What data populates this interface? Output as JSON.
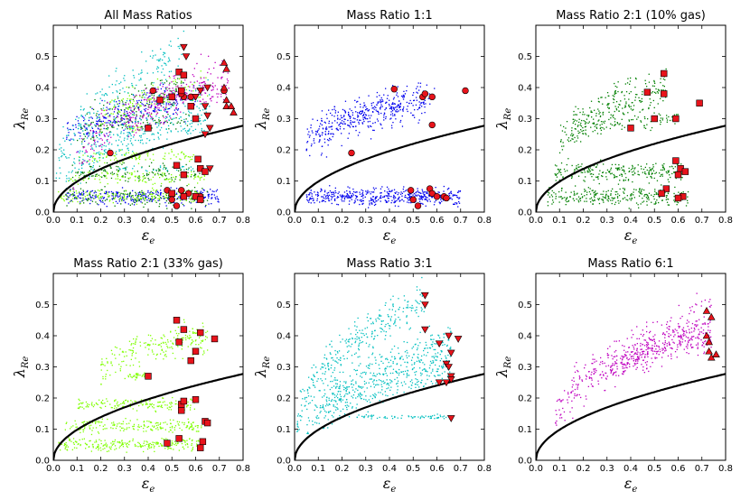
{
  "chart_data": [
    {
      "type": "scatter",
      "title": "All Mass Ratios",
      "xlabel": "ε",
      "xlabel_sub": "e",
      "ylabel": "λ",
      "ylabel_sub": "Re",
      "xlim": [
        0,
        0.8
      ],
      "ylim": [
        0,
        0.6
      ],
      "xticks": [
        "0.0",
        "0.1",
        "0.2",
        "0.3",
        "0.4",
        "0.5",
        "0.6",
        "0.7",
        "0.8"
      ],
      "yticks": [
        "0.0",
        "0.1",
        "0.2",
        "0.3",
        "0.4",
        "0.5"
      ],
      "grid": false,
      "curve": {
        "formula": "0.31*sqrt(x)",
        "color": "#000000"
      },
      "clouds_from": [
        "1:1",
        "2:1 (10% gas)",
        "2:1 (33% gas)",
        "3:1",
        "6:1"
      ],
      "markers": [
        {
          "shape": "circle",
          "color": "#e8131b",
          "points": [
            [
              0.42,
              0.39
            ],
            [
              0.55,
              0.37
            ],
            [
              0.54,
              0.38
            ],
            [
              0.58,
              0.37
            ],
            [
              0.72,
              0.39
            ],
            [
              0.24,
              0.19
            ],
            [
              0.5,
              0.04
            ],
            [
              0.52,
              0.02
            ],
            [
              0.54,
              0.07
            ],
            [
              0.57,
              0.06
            ],
            [
              0.6,
              0.05
            ],
            [
              0.62,
              0.05
            ],
            [
              0.48,
              0.07
            ]
          ]
        },
        {
          "shape": "square",
          "color": "#e8131b",
          "points": [
            [
              0.53,
              0.45
            ],
            [
              0.55,
              0.44
            ],
            [
              0.5,
              0.37
            ],
            [
              0.45,
              0.36
            ],
            [
              0.54,
              0.39
            ],
            [
              0.58,
              0.34
            ],
            [
              0.4,
              0.27
            ],
            [
              0.6,
              0.3
            ],
            [
              0.62,
              0.14
            ],
            [
              0.61,
              0.17
            ],
            [
              0.64,
              0.13
            ],
            [
              0.55,
              0.12
            ],
            [
              0.5,
              0.06
            ],
            [
              0.55,
              0.05
            ],
            [
              0.6,
              0.05
            ],
            [
              0.62,
              0.04
            ],
            [
              0.52,
              0.15
            ]
          ]
        },
        {
          "shape": "triangle-down",
          "color": "#e8131b",
          "points": [
            [
              0.55,
              0.53
            ],
            [
              0.56,
              0.5
            ],
            [
              0.65,
              0.4
            ],
            [
              0.64,
              0.34
            ],
            [
              0.65,
              0.31
            ],
            [
              0.66,
              0.27
            ],
            [
              0.64,
              0.25
            ],
            [
              0.66,
              0.14
            ],
            [
              0.6,
              0.37
            ],
            [
              0.62,
              0.39
            ]
          ]
        },
        {
          "shape": "triangle-up",
          "color": "#e8131b",
          "points": [
            [
              0.72,
              0.48
            ],
            [
              0.73,
              0.46
            ],
            [
              0.72,
              0.4
            ],
            [
              0.73,
              0.36
            ],
            [
              0.73,
              0.34
            ],
            [
              0.75,
              0.34
            ],
            [
              0.76,
              0.32
            ]
          ]
        }
      ]
    },
    {
      "type": "scatter",
      "title": "Mass Ratio 1:1",
      "xlabel": "ε",
      "xlabel_sub": "e",
      "ylabel": "λ",
      "ylabel_sub": "Re",
      "xlim": [
        0,
        0.8
      ],
      "ylim": [
        0,
        0.6
      ],
      "xticks": [
        "0.0",
        "0.1",
        "0.2",
        "0.3",
        "0.4",
        "0.5",
        "0.6",
        "0.7",
        "0.8"
      ],
      "yticks": [
        "0.0",
        "0.1",
        "0.2",
        "0.3",
        "0.4",
        "0.5"
      ],
      "grid": false,
      "curve": {
        "formula": "0.31*sqrt(x)",
        "color": "#000000"
      },
      "cloud_color": "#0000ee",
      "markers": [
        {
          "shape": "circle",
          "color": "#e8131b",
          "points": [
            [
              0.42,
              0.395
            ],
            [
              0.54,
              0.37
            ],
            [
              0.55,
              0.38
            ],
            [
              0.58,
              0.37
            ],
            [
              0.72,
              0.39
            ],
            [
              0.58,
              0.28
            ],
            [
              0.24,
              0.19
            ],
            [
              0.49,
              0.07
            ],
            [
              0.5,
              0.04
            ],
            [
              0.52,
              0.02
            ],
            [
              0.57,
              0.075
            ],
            [
              0.58,
              0.06
            ],
            [
              0.6,
              0.05
            ],
            [
              0.63,
              0.05
            ],
            [
              0.64,
              0.045
            ]
          ]
        }
      ]
    },
    {
      "type": "scatter",
      "title": "Mass Ratio 2:1 (10% gas)",
      "xlabel": "ε",
      "xlabel_sub": "e",
      "ylabel": "λ",
      "ylabel_sub": "Re",
      "xlim": [
        0,
        0.8
      ],
      "ylim": [
        0,
        0.6
      ],
      "xticks": [
        "0.0",
        "0.1",
        "0.2",
        "0.3",
        "0.4",
        "0.5",
        "0.6",
        "0.7",
        "0.8"
      ],
      "yticks": [
        "0.0",
        "0.1",
        "0.2",
        "0.3",
        "0.4",
        "0.5"
      ],
      "grid": false,
      "curve": {
        "formula": "0.31*sqrt(x)",
        "color": "#000000"
      },
      "cloud_color": "#007f00",
      "markers": [
        {
          "shape": "square",
          "color": "#e8131b",
          "points": [
            [
              0.54,
              0.445
            ],
            [
              0.47,
              0.385
            ],
            [
              0.54,
              0.38
            ],
            [
              0.69,
              0.35
            ],
            [
              0.5,
              0.3
            ],
            [
              0.59,
              0.3
            ],
            [
              0.4,
              0.27
            ],
            [
              0.59,
              0.165
            ],
            [
              0.61,
              0.14
            ],
            [
              0.63,
              0.13
            ],
            [
              0.6,
              0.12
            ],
            [
              0.55,
              0.075
            ],
            [
              0.53,
              0.06
            ],
            [
              0.62,
              0.05
            ],
            [
              0.6,
              0.045
            ]
          ]
        }
      ]
    },
    {
      "type": "scatter",
      "title": "Mass Ratio 2:1 (33% gas)",
      "xlabel": "ε",
      "xlabel_sub": "e",
      "ylabel": "λ",
      "ylabel_sub": "Re",
      "xlim": [
        0,
        0.8
      ],
      "ylim": [
        0,
        0.6
      ],
      "xticks": [
        "0.0",
        "0.1",
        "0.2",
        "0.3",
        "0.4",
        "0.5",
        "0.6",
        "0.7",
        "0.8"
      ],
      "yticks": [
        "0.0",
        "0.1",
        "0.2",
        "0.3",
        "0.4",
        "0.5"
      ],
      "grid": false,
      "curve": {
        "formula": "0.31*sqrt(x)",
        "color": "#000000"
      },
      "cloud_color": "#7fff00",
      "markers": [
        {
          "shape": "square",
          "color": "#e8131b",
          "points": [
            [
              0.52,
              0.45
            ],
            [
              0.55,
              0.42
            ],
            [
              0.62,
              0.41
            ],
            [
              0.53,
              0.38
            ],
            [
              0.68,
              0.39
            ],
            [
              0.6,
              0.35
            ],
            [
              0.58,
              0.32
            ],
            [
              0.4,
              0.27
            ],
            [
              0.54,
              0.18
            ],
            [
              0.55,
              0.19
            ],
            [
              0.6,
              0.195
            ],
            [
              0.54,
              0.16
            ],
            [
              0.64,
              0.125
            ],
            [
              0.65,
              0.12
            ],
            [
              0.48,
              0.055
            ],
            [
              0.53,
              0.07
            ],
            [
              0.62,
              0.04
            ],
            [
              0.63,
              0.06
            ]
          ]
        }
      ]
    },
    {
      "type": "scatter",
      "title": "Mass Ratio 3:1",
      "xlabel": "ε",
      "xlabel_sub": "e",
      "ylabel": "λ",
      "ylabel_sub": "Re",
      "xlim": [
        0,
        0.8
      ],
      "ylim": [
        0,
        0.6
      ],
      "xticks": [
        "0.0",
        "0.1",
        "0.2",
        "0.3",
        "0.4",
        "0.5",
        "0.6",
        "0.7",
        "0.8"
      ],
      "yticks": [
        "0.0",
        "0.1",
        "0.2",
        "0.3",
        "0.4",
        "0.5"
      ],
      "grid": false,
      "curve": {
        "formula": "0.31*sqrt(x)",
        "color": "#000000"
      },
      "cloud_color": "#00bfbf",
      "markers": [
        {
          "shape": "triangle-down",
          "color": "#e8131b",
          "points": [
            [
              0.55,
              0.53
            ],
            [
              0.55,
              0.5
            ],
            [
              0.55,
              0.42
            ],
            [
              0.65,
              0.4
            ],
            [
              0.69,
              0.39
            ],
            [
              0.61,
              0.375
            ],
            [
              0.66,
              0.345
            ],
            [
              0.64,
              0.31
            ],
            [
              0.65,
              0.3
            ],
            [
              0.66,
              0.27
            ],
            [
              0.66,
              0.26
            ],
            [
              0.61,
              0.25
            ],
            [
              0.64,
              0.25
            ],
            [
              0.66,
              0.135
            ]
          ]
        }
      ]
    },
    {
      "type": "scatter",
      "title": "Mass Ratio 6:1",
      "xlabel": "ε",
      "xlabel_sub": "e",
      "ylabel": "λ",
      "ylabel_sub": "Re",
      "xlim": [
        0,
        0.8
      ],
      "ylim": [
        0,
        0.6
      ],
      "xticks": [
        "0.0",
        "0.1",
        "0.2",
        "0.3",
        "0.4",
        "0.5",
        "0.6",
        "0.7",
        "0.8"
      ],
      "yticks": [
        "0.0",
        "0.1",
        "0.2",
        "0.3",
        "0.4",
        "0.5"
      ],
      "grid": false,
      "curve": {
        "formula": "0.31*sqrt(x)",
        "color": "#000000"
      },
      "cloud_color": "#bf00bf",
      "markers": [
        {
          "shape": "triangle-up",
          "color": "#e8131b",
          "points": [
            [
              0.72,
              0.48
            ],
            [
              0.74,
              0.46
            ],
            [
              0.72,
              0.4
            ],
            [
              0.73,
              0.38
            ],
            [
              0.73,
              0.35
            ],
            [
              0.74,
              0.33
            ],
            [
              0.76,
              0.34
            ]
          ]
        }
      ]
    }
  ]
}
